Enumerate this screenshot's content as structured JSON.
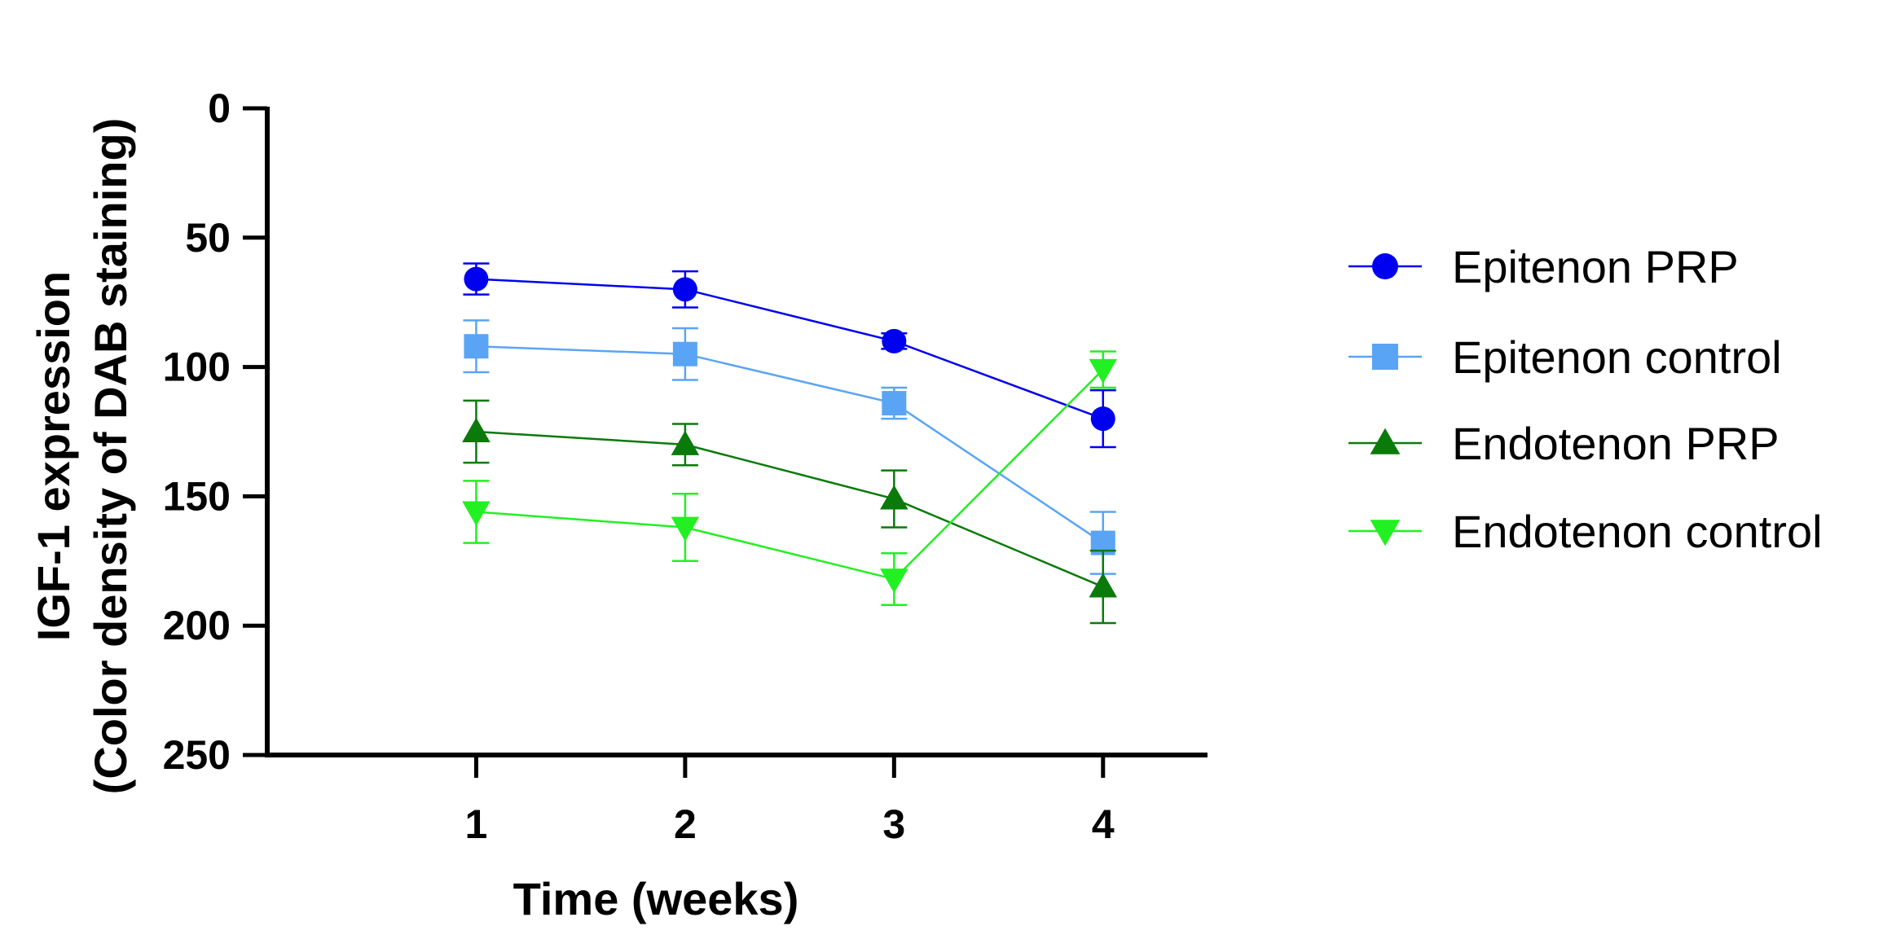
{
  "chart_data": {
    "type": "line",
    "title": "",
    "xlabel": "Time (weeks)",
    "ylabel_line1": "IGF-1 expression",
    "ylabel_line2": "(Color density of DAB staining)",
    "x": [
      1,
      2,
      3,
      4
    ],
    "x_tick_labels": [
      "1",
      "2",
      "3",
      "4"
    ],
    "xlim": [
      0,
      4.5
    ],
    "ylim": [
      0,
      250
    ],
    "y_inverted": true,
    "y_ticks": [
      0,
      50,
      100,
      150,
      200,
      250
    ],
    "y_tick_labels": [
      "0",
      "50",
      "100",
      "150",
      "200",
      "250"
    ],
    "grid": false,
    "legend_position": "right",
    "series": [
      {
        "name": "Epitenon PRP",
        "marker": "circle",
        "color": "#0000f0",
        "values": [
          66,
          70,
          90,
          120
        ],
        "errors": [
          6,
          7,
          3,
          11
        ]
      },
      {
        "name": "Epitenon control",
        "marker": "square",
        "color": "#5aa4f5",
        "values": [
          92,
          95,
          114,
          168
        ],
        "errors": [
          10,
          10,
          6,
          12
        ]
      },
      {
        "name": "Endotenon PRP",
        "marker": "triangle-up",
        "color": "#0a7a0a",
        "values": [
          125,
          130,
          151,
          185
        ],
        "errors": [
          12,
          8,
          11,
          14
        ]
      },
      {
        "name": "Endotenon control",
        "marker": "triangle-down",
        "color": "#22f022",
        "values": [
          156,
          162,
          182,
          101
        ],
        "errors": [
          12,
          13,
          10,
          7
        ]
      }
    ]
  }
}
